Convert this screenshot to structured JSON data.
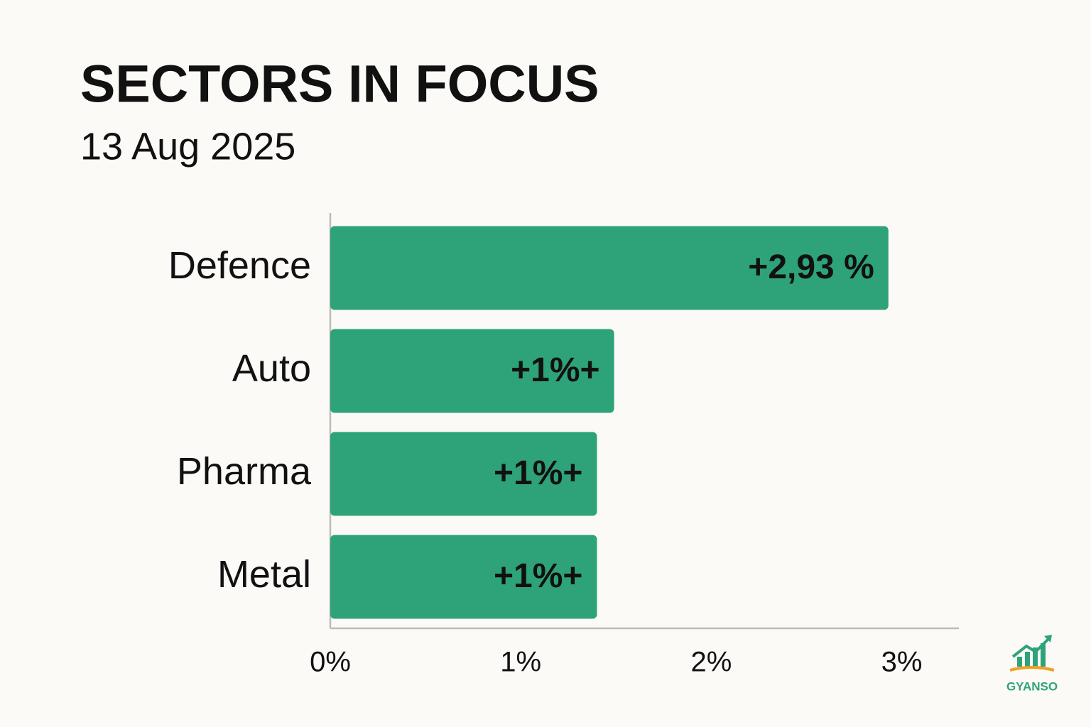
{
  "chart_data": {
    "type": "hbar",
    "title": "SECTORS IN FOCUS",
    "subtitle": "13 Aug 2025",
    "categories": [
      "Defence",
      "Auto",
      "Pharma",
      "Metal"
    ],
    "values": [
      2.93,
      1.49,
      1.4,
      1.4
    ],
    "value_labels": [
      "+2,93 %",
      "+1%+",
      "+1%+",
      "+1%+"
    ],
    "color": "#2ea37a",
    "xlim": [
      0,
      3.3
    ],
    "xticks": [
      {
        "value": 0,
        "label": "0%"
      },
      {
        "value": 1,
        "label": "1%"
      },
      {
        "value": 2,
        "label": "2%"
      },
      {
        "value": 3,
        "label": "3%"
      }
    ],
    "grid": false,
    "brand": "GYANSO"
  }
}
